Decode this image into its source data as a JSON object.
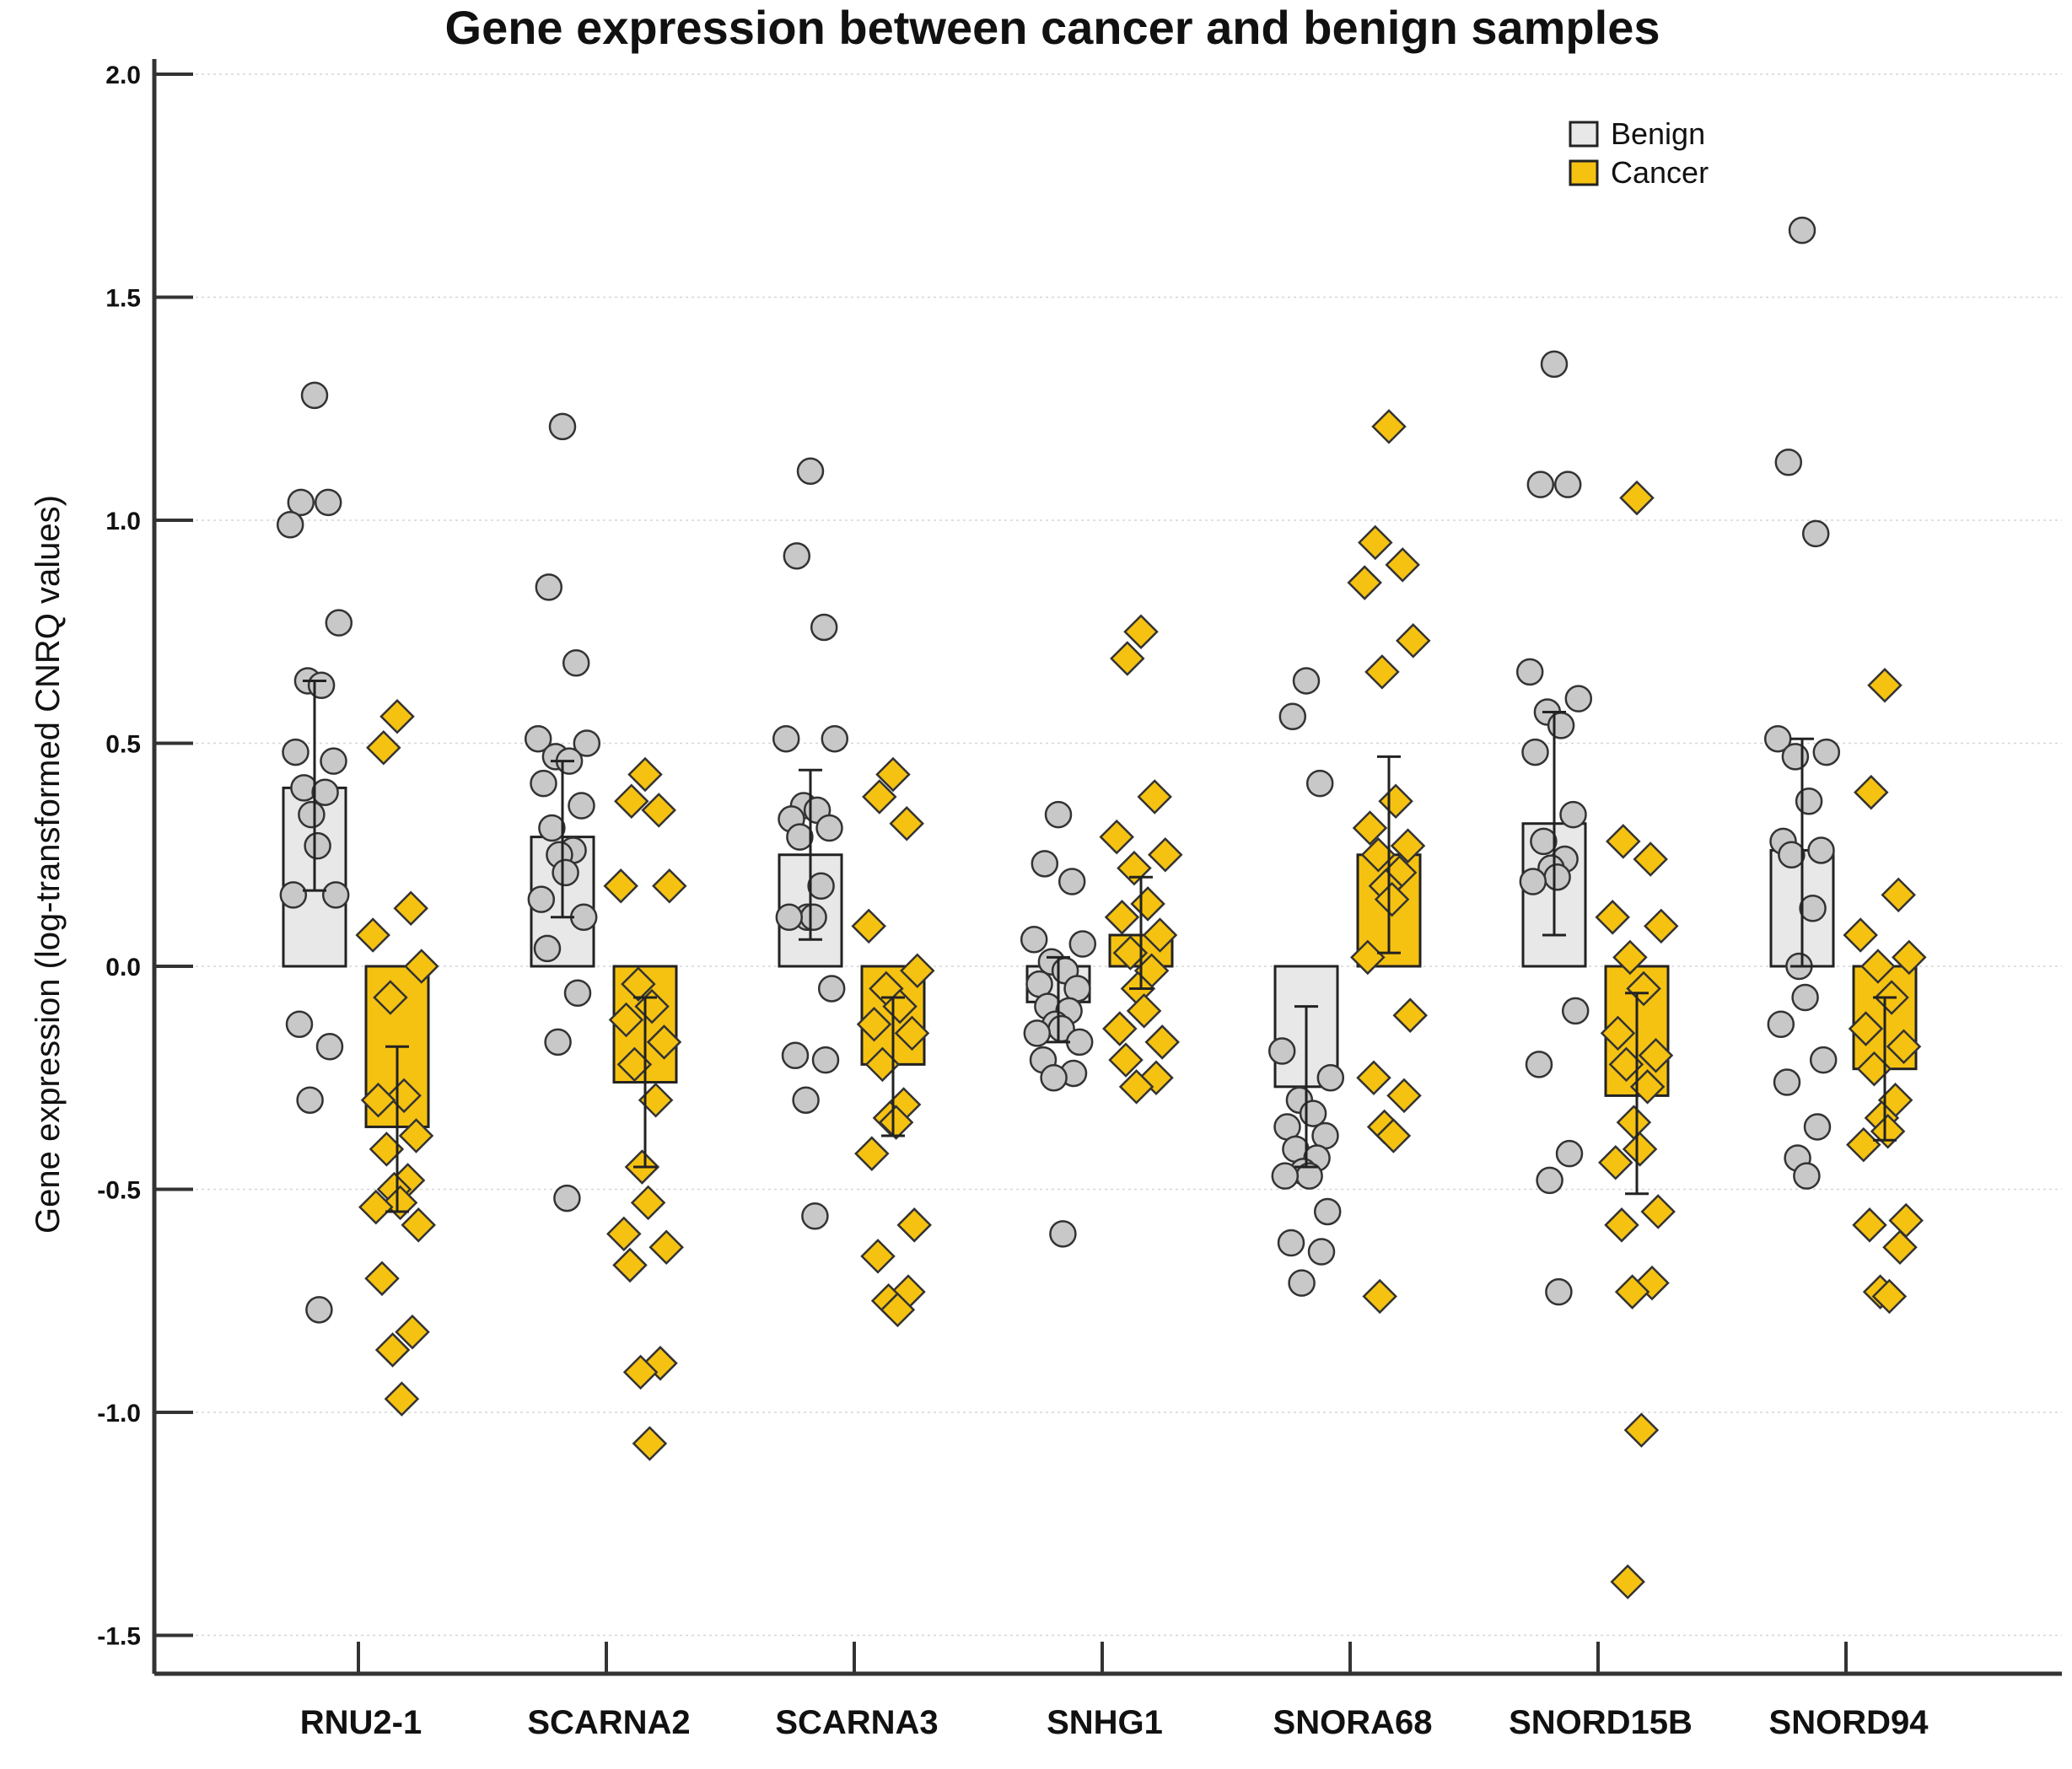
{
  "chart_data": {
    "type": "bar",
    "title": "Gene expression between cancer and benign samples",
    "xlabel": "",
    "ylabel": "Gene expression (log-transformed CNRQ values)",
    "ylim": [
      -1.5,
      2.0
    ],
    "yticks": [
      2.0,
      1.5,
      1.0,
      0.5,
      0.0,
      -0.5,
      -1.0,
      -1.5
    ],
    "ytick_labels": [
      "2.0",
      "1.5",
      "1.0",
      "0.5",
      "0.0",
      "-0.5",
      "-1.0",
      "-1.5"
    ],
    "grid": true,
    "legend_position": "top-right",
    "categories": [
      "RNU2-1",
      "SCARNA2",
      "SCARNA3",
      "SNHG1",
      "SNORA68",
      "SNORD15B",
      "SNORD94"
    ],
    "series": [
      {
        "name": "Benign",
        "color": "#e8e8e8",
        "marker": "circle",
        "marker_color": "#c8c8c8",
        "values": [
          0.4,
          0.29,
          0.25,
          -0.08,
          -0.27,
          0.32,
          0.26
        ],
        "error_low": [
          0.17,
          0.11,
          0.06,
          -0.17,
          -0.45,
          0.07,
          0.0
        ],
        "error_high": [
          0.64,
          0.46,
          0.44,
          0.02,
          -0.09,
          0.57,
          0.51
        ],
        "points": [
          [
            1.28,
            1.04,
            1.04,
            0.99,
            0.77,
            0.64,
            0.63,
            0.48,
            0.46,
            0.4,
            0.39,
            0.34,
            0.27,
            0.16,
            0.16,
            -0.13,
            -0.18,
            -0.3,
            -0.77
          ],
          [
            1.21,
            0.85,
            0.68,
            0.51,
            0.5,
            0.47,
            0.46,
            0.41,
            0.36,
            0.31,
            0.26,
            0.25,
            0.21,
            0.15,
            0.11,
            0.04,
            -0.06,
            -0.17,
            -0.52
          ],
          [
            1.11,
            0.92,
            0.76,
            0.51,
            0.51,
            0.36,
            0.35,
            0.33,
            0.31,
            0.29,
            0.18,
            0.11,
            0.11,
            0.11,
            -0.05,
            -0.2,
            -0.21,
            -0.3,
            -0.56
          ],
          [
            0.34,
            0.23,
            0.19,
            0.06,
            0.05,
            0.01,
            -0.01,
            -0.04,
            -0.05,
            -0.09,
            -0.1,
            -0.13,
            -0.14,
            -0.15,
            -0.17,
            -0.21,
            -0.24,
            -0.25,
            -0.6
          ],
          [
            0.64,
            0.56,
            0.41,
            -0.19,
            -0.25,
            -0.3,
            -0.33,
            -0.36,
            -0.38,
            -0.41,
            -0.43,
            -0.46,
            -0.47,
            -0.47,
            -0.55,
            -0.62,
            -0.64,
            -0.71
          ],
          [
            1.35,
            1.08,
            1.08,
            0.66,
            0.6,
            0.57,
            0.54,
            0.48,
            0.34,
            0.28,
            0.24,
            0.22,
            0.2,
            0.19,
            -0.1,
            -0.22,
            -0.42,
            -0.48,
            -0.73
          ],
          [
            1.65,
            1.13,
            0.97,
            0.51,
            0.48,
            0.47,
            0.37,
            0.28,
            0.26,
            0.25,
            0.13,
            0.0,
            -0.07,
            -0.13,
            -0.21,
            -0.26,
            -0.36,
            -0.43,
            -0.47
          ]
        ]
      },
      {
        "name": "Cancer",
        "color": "#f5c211",
        "marker": "diamond",
        "marker_color": "#f5c211",
        "values": [
          -0.36,
          -0.26,
          -0.22,
          0.07,
          0.25,
          -0.29,
          -0.23
        ],
        "error_low": [
          -0.55,
          -0.45,
          -0.38,
          -0.05,
          0.03,
          -0.51,
          -0.39
        ],
        "error_high": [
          -0.18,
          -0.07,
          -0.07,
          0.2,
          0.47,
          -0.06,
          -0.07
        ],
        "points": [
          [
            0.56,
            0.49,
            0.13,
            0.07,
            0.0,
            -0.07,
            -0.29,
            -0.3,
            -0.38,
            -0.41,
            -0.48,
            -0.5,
            -0.53,
            -0.54,
            -0.58,
            -0.7,
            -0.82,
            -0.86,
            -0.97
          ],
          [
            0.43,
            0.37,
            0.35,
            0.18,
            0.18,
            -0.04,
            -0.09,
            -0.12,
            -0.17,
            -0.22,
            -0.3,
            -0.45,
            -0.53,
            -0.6,
            -0.63,
            -0.67,
            -0.89,
            -0.91,
            -1.07
          ],
          [
            0.43,
            0.38,
            0.32,
            0.09,
            -0.01,
            -0.05,
            -0.09,
            -0.13,
            -0.15,
            -0.22,
            -0.31,
            -0.34,
            -0.35,
            -0.42,
            -0.58,
            -0.65,
            -0.73,
            -0.75,
            -0.77
          ],
          [
            0.75,
            0.69,
            0.38,
            0.29,
            0.25,
            0.22,
            0.14,
            0.11,
            0.07,
            0.03,
            -0.01,
            -0.05,
            -0.1,
            -0.14,
            -0.17,
            -0.21,
            -0.25,
            -0.27
          ],
          [
            1.21,
            0.95,
            0.9,
            0.86,
            0.73,
            0.66,
            0.37,
            0.31,
            0.27,
            0.25,
            0.21,
            0.18,
            0.15,
            0.02,
            -0.11,
            -0.25,
            -0.29,
            -0.36,
            -0.38,
            -0.74
          ],
          [
            1.05,
            0.28,
            0.24,
            0.11,
            0.09,
            0.02,
            -0.05,
            -0.15,
            -0.2,
            -0.22,
            -0.27,
            -0.35,
            -0.41,
            -0.44,
            -0.55,
            -0.58,
            -0.71,
            -0.73,
            -1.04,
            -1.38
          ],
          [
            0.63,
            0.39,
            0.16,
            0.07,
            0.02,
            0.0,
            -0.07,
            -0.14,
            -0.18,
            -0.23,
            -0.3,
            -0.34,
            -0.37,
            -0.4,
            -0.57,
            -0.58,
            -0.63,
            -0.73,
            -0.74
          ]
        ]
      }
    ]
  }
}
